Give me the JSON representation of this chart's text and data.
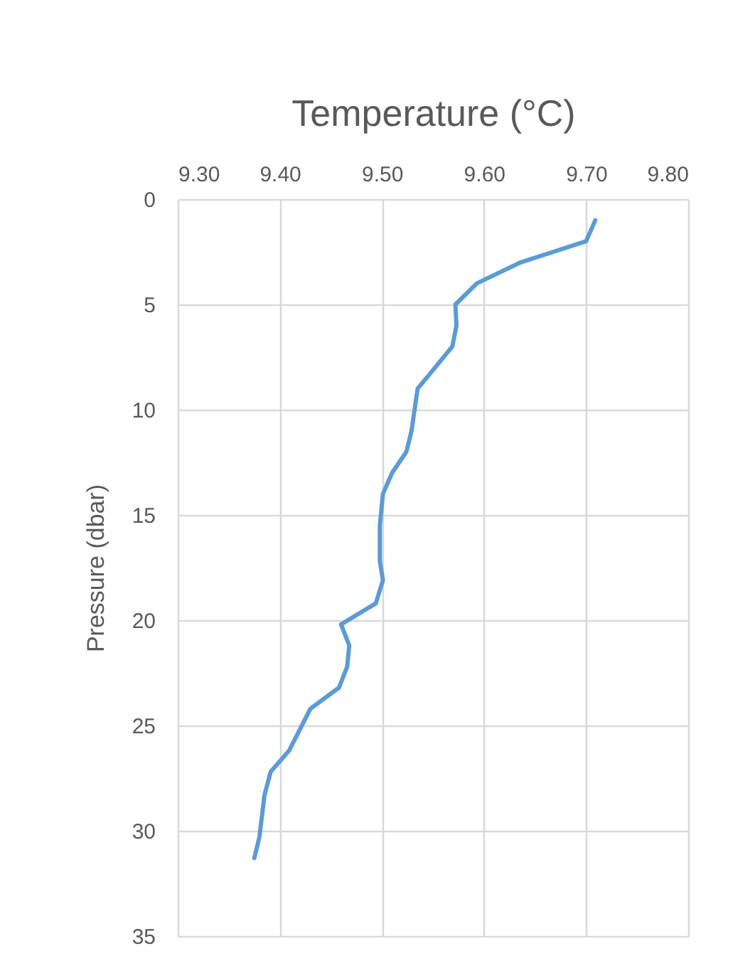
{
  "chart_data": {
    "type": "line",
    "xlabel": "Temperature (°C)",
    "ylabel": "Pressure (dbar)",
    "x": [
      9.709,
      9.7,
      9.636,
      9.593,
      9.572,
      9.573,
      9.569,
      9.552,
      9.535,
      9.529,
      9.524,
      9.51,
      9.501,
      9.498,
      9.498,
      9.501,
      9.494,
      9.46,
      9.468,
      9.466,
      9.458,
      9.43,
      9.409,
      9.391,
      9.385,
      9.38,
      9.375
    ],
    "values": [
      1,
      2,
      3,
      4,
      5,
      6,
      7,
      8,
      9,
      11,
      12,
      13,
      14,
      15.5,
      17.2,
      18.1,
      19.2,
      20.2,
      21.2,
      22.2,
      23.2,
      24.2,
      26.2,
      27.2,
      28.3,
      30.3,
      31.3
    ],
    "color": "#5b9bd5",
    "xlim": [
      9.3,
      9.8
    ],
    "xticks": [
      {
        "value": 9.3,
        "label": "9.30"
      },
      {
        "value": 9.4,
        "label": "9.40"
      },
      {
        "value": 9.5,
        "label": "9.50"
      },
      {
        "value": 9.6,
        "label": "9.60"
      },
      {
        "value": 9.7,
        "label": "9.70"
      },
      {
        "value": 9.8,
        "label": "9.80"
      }
    ],
    "ylim": [
      35,
      0
    ],
    "yticks": [
      0,
      5,
      10,
      15,
      20,
      25,
      30,
      35
    ],
    "grid": true
  }
}
